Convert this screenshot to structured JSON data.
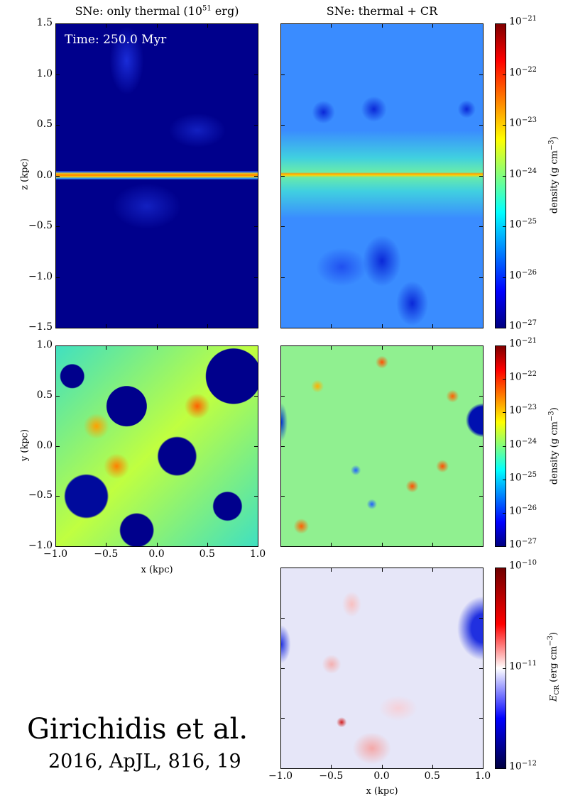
{
  "chart_data": {
    "type": "heatmap",
    "panels": [
      {
        "id": "p1",
        "title": "SNe: only thermal (10",
        "title_sup": "51",
        "title_end": " erg)",
        "annotation": "Time: 250.0 Myr",
        "xlim": [
          -1.0,
          1.0
        ],
        "ylim": [
          -1.5,
          1.5
        ],
        "ylabel": "z (kpc)",
        "xlabel": "",
        "yticks": [
          "−1.5",
          "−1.0",
          "−0.5",
          "0.0",
          "0.5",
          "1.0",
          "1.5"
        ],
        "yticks_v": [
          -1.5,
          -1.0,
          -0.5,
          0,
          0.5,
          1.0,
          1.5
        ],
        "xticks": [],
        "xticks_v": [
          -1,
          -0.5,
          0,
          0.5,
          1
        ],
        "quantity": "density"
      },
      {
        "id": "p2",
        "title": "SNe: thermal + CR",
        "xlim": [
          -1.0,
          1.0
        ],
        "ylim": [
          -1.5,
          1.5
        ],
        "yticks": [],
        "yticks_v": [
          -1.5,
          -1.0,
          -0.5,
          0,
          0.5,
          1.0,
          1.5
        ],
        "xticks": [],
        "xticks_v": [
          -1,
          -0.5,
          0,
          0.5,
          1
        ],
        "quantity": "density"
      },
      {
        "id": "p3",
        "xlim": [
          -1.0,
          1.0
        ],
        "ylim": [
          -1.0,
          1.0
        ],
        "ylabel": "y (kpc)",
        "xlabel": "x (kpc)",
        "yticks": [
          "−1.0",
          "−0.5",
          "0.0",
          "0.5",
          "1.0"
        ],
        "yticks_v": [
          -1,
          -0.5,
          0,
          0.5,
          1
        ],
        "xticks": [
          "−1.0",
          "−0.5",
          "0.0",
          "0.5",
          "1.0"
        ],
        "xticks_v": [
          -1,
          -0.5,
          0,
          0.5,
          1
        ],
        "quantity": "density"
      },
      {
        "id": "p4",
        "xlim": [
          -1.0,
          1.0
        ],
        "ylim": [
          -1.0,
          1.0
        ],
        "yticks": [],
        "yticks_v": [
          -1,
          -0.5,
          0,
          0.5,
          1
        ],
        "xticks": [],
        "xticks_v": [
          -1,
          -0.5,
          0,
          0.5,
          1
        ],
        "quantity": "density"
      },
      {
        "id": "p5",
        "xlim": [
          -1.0,
          1.0
        ],
        "ylim": [
          -1.0,
          1.0
        ],
        "xlabel": "x (kpc)",
        "yticks": [],
        "yticks_v": [
          -1,
          -0.5,
          0,
          0.5,
          1
        ],
        "xticks": [
          "−1.0",
          "−0.5",
          "0.0",
          "0.5",
          "1.0"
        ],
        "xticks_v": [
          -1,
          -0.5,
          0,
          0.5,
          1
        ],
        "quantity": "E_CR"
      }
    ],
    "colorbars": [
      {
        "id": "cb1",
        "label": "density  (g cm",
        "label_sup": "−3",
        "label_end": ")",
        "scale": "log",
        "range": [
          1e-27,
          1e-21
        ],
        "ticks": [
          "−21",
          "−22",
          "−23",
          "−24",
          "−25",
          "−26",
          "−27"
        ],
        "colormap": "jet"
      },
      {
        "id": "cb2",
        "label": "density  (g cm",
        "label_sup": "−3",
        "label_end": ")",
        "scale": "log",
        "range": [
          1e-27,
          1e-21
        ],
        "ticks": [
          "−21",
          "−22",
          "−23",
          "−24",
          "−25",
          "−26",
          "−27"
        ],
        "colormap": "jet"
      },
      {
        "id": "cb3",
        "label": "E",
        "label_sub": "CR",
        "label_end": "  (erg cm",
        "label_sup": "−3",
        "label_end2": ")",
        "scale": "log",
        "range": [
          1e-12,
          1e-10
        ],
        "ticks": [
          "−10",
          "−11",
          "−12"
        ],
        "colormap": "seismic"
      }
    ],
    "tick_base": "10"
  },
  "citation": {
    "authors": "Girichidis et al.",
    "reference": "2016, ApJL, 816, 19"
  }
}
